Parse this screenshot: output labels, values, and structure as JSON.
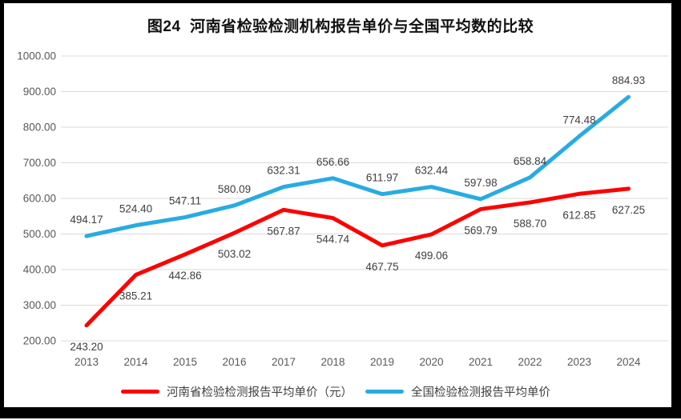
{
  "page": {
    "background_color": "#FFFFFF",
    "frame_color": "#000000"
  },
  "chart_data": {
    "type": "line",
    "title": "图24  河南省检验检测机构报告单价与全国平均数的比较",
    "categories": [
      "2013",
      "2014",
      "2015",
      "2016",
      "2017",
      "2018",
      "2019",
      "2020",
      "2021",
      "2022",
      "2023",
      "2024"
    ],
    "series": [
      {
        "name": "河南省检验检测报告平均单价（元）",
        "color": "#FF0000",
        "label_position": "below",
        "values": [
          243.2,
          385.21,
          442.86,
          503.02,
          567.87,
          544.74,
          467.75,
          499.06,
          569.79,
          588.7,
          612.85,
          627.25
        ]
      },
      {
        "name": "全国检验检测报告平均单价",
        "color": "#29ABE2",
        "label_position": "above",
        "values": [
          494.17,
          524.4,
          547.11,
          580.09,
          632.31,
          656.66,
          611.97,
          632.44,
          597.98,
          658.84,
          774.48,
          884.93
        ]
      }
    ],
    "ylim": [
      200,
      1000
    ],
    "yticks": [
      {
        "value": 1000,
        "label": "1000.00"
      },
      {
        "value": 900,
        "label": "900.00"
      },
      {
        "value": 800,
        "label": "800.00"
      },
      {
        "value": 700,
        "label": "700.00"
      },
      {
        "value": 600,
        "label": "600.00"
      },
      {
        "value": 500,
        "label": "500.00"
      },
      {
        "value": 400,
        "label": "400.00"
      },
      {
        "value": 300,
        "label": "300.00"
      },
      {
        "value": 200,
        "label": "200.00"
      }
    ],
    "grid": true,
    "legend_position": "bottom",
    "gridline_color": "#D9D9D9",
    "axis_label_color": "#595959",
    "data_label_color": "#404040"
  }
}
